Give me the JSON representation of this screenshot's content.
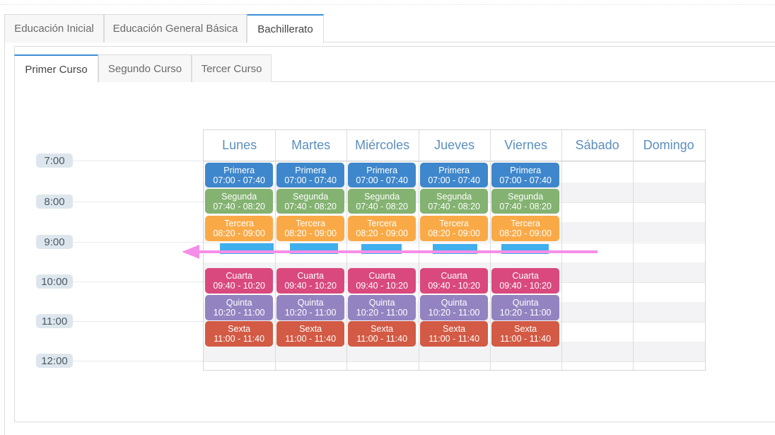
{
  "level_tabs": [
    "Educación Inicial",
    "Educación General Básica",
    "Bachillerato"
  ],
  "course_tabs": [
    "Primer Curso",
    "Segundo Curso",
    "Tercer Curso"
  ],
  "times": [
    "7:00",
    "8:00",
    "9:00",
    "10:00",
    "11:00",
    "12:00"
  ],
  "days": [
    "Lunes",
    "Martes",
    "Miércoles",
    "Jueves",
    "Viernes",
    "Sábado",
    "Domingo"
  ],
  "periods": [
    {
      "name": "Primera",
      "range": "07:00 - 07:40",
      "color": "#3f87cc"
    },
    {
      "name": "Segunda",
      "range": "07:40 - 08:20",
      "color": "#83b271"
    },
    {
      "name": "Tercera",
      "range": "08:20 - 09:00",
      "color": "#f9aa47"
    },
    {
      "name": "Cuarta",
      "range": "09:40 - 10:20",
      "color": "#d9497e"
    },
    {
      "name": "Quinta",
      "range": "10:20 - 11:00",
      "color": "#9384c1"
    },
    {
      "name": "Sexta",
      "range": "11:00 - 11:40",
      "color": "#d35a44"
    }
  ],
  "colors": {
    "accent": "#3a8fd6",
    "annotation_arrow": "#f58ee8",
    "annotation_highlight": "#2aa6ec"
  }
}
